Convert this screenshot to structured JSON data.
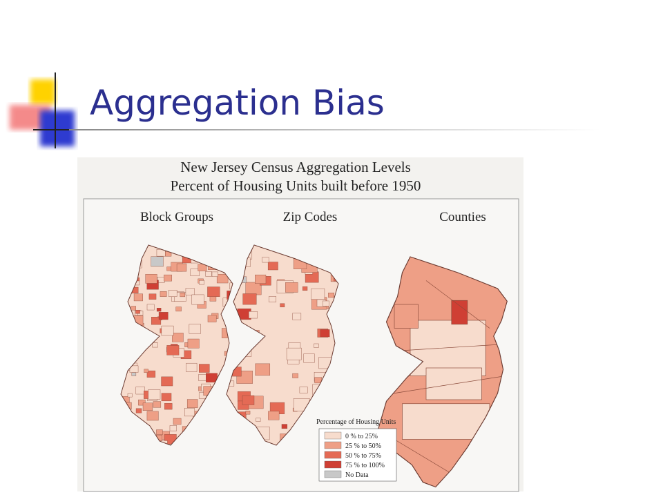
{
  "slide": {
    "title": "Aggregation Bias"
  },
  "figure": {
    "title": [
      "New Jersey Census Aggregation Levels",
      "Percent of Housing Units built before 1950"
    ],
    "panels": [
      "Block Groups",
      "Zip Codes",
      "Counties"
    ],
    "legend": {
      "title": "Percentage of Housing Units",
      "entries": [
        {
          "label": "0 % to 25%",
          "color": "#f7dccd"
        },
        {
          "label": "25 % to 50%",
          "color": "#ee9f86"
        },
        {
          "label": "50 % to 75%",
          "color": "#e46a55"
        },
        {
          "label": "75 % to 100%",
          "color": "#cf3f34"
        },
        {
          "label": "No Data",
          "color": "#c8c8c8"
        }
      ]
    }
  }
}
